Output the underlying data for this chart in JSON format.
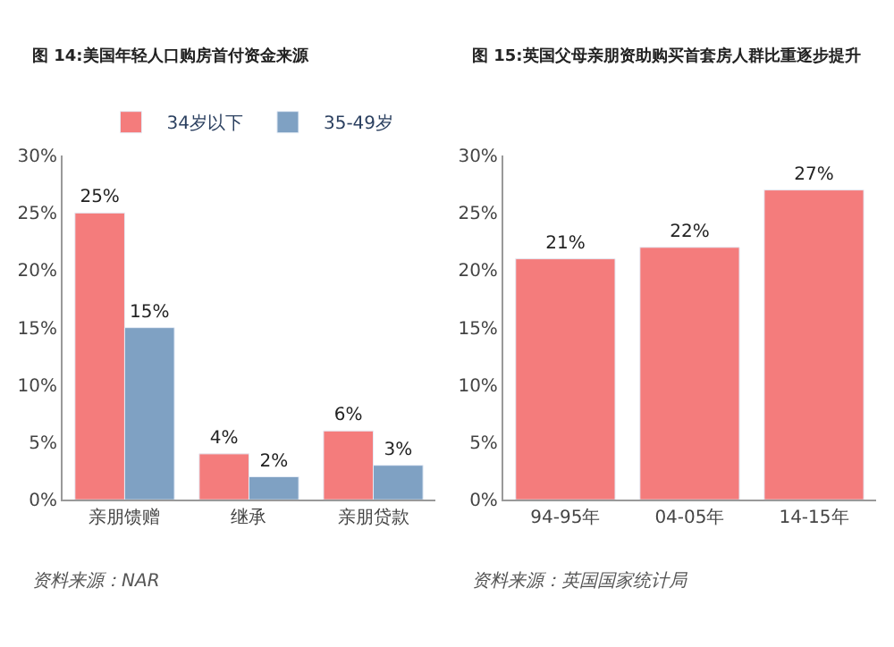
{
  "chart_data": [
    {
      "type": "bar",
      "title": "图 14:美国年轻人口购房首付资金来源",
      "categories": [
        "亲朋馈赠",
        "继承",
        "亲朋贷款"
      ],
      "series": [
        {
          "name": "34岁以下",
          "color": "#f47c7c",
          "values": [
            25,
            4,
            6
          ]
        },
        {
          "name": "35-49岁",
          "color": "#7fa1c3",
          "values": [
            15,
            2,
            3
          ]
        }
      ],
      "ylim": [
        0,
        30
      ],
      "yticks": [
        {
          "value": 0,
          "label": "0%"
        },
        {
          "value": 5,
          "label": "5%"
        },
        {
          "value": 10,
          "label": "10%"
        },
        {
          "value": 15,
          "label": "15%"
        },
        {
          "value": 20,
          "label": "20%"
        },
        {
          "value": 25,
          "label": "25%"
        },
        {
          "value": 30,
          "label": "30%"
        }
      ],
      "value_labels": [
        [
          "25%",
          "4%",
          "6%"
        ],
        [
          "15%",
          "2%",
          "3%"
        ]
      ],
      "legend": "top",
      "annotations": [
        "资料来源：NAR"
      ]
    },
    {
      "type": "bar",
      "title": "图 15:英国父母亲朋资助购买首套房人群比重逐步提升",
      "categories": [
        "94-95年",
        "04-05年",
        "14-15年"
      ],
      "series": [
        {
          "color": "#f47c7c",
          "values": [
            21,
            22,
            27
          ]
        }
      ],
      "ylim": [
        0,
        30
      ],
      "yticks": [
        {
          "value": 0,
          "label": "0%"
        },
        {
          "value": 5,
          "label": "5%"
        },
        {
          "value": 10,
          "label": "10%"
        },
        {
          "value": 15,
          "label": "15%"
        },
        {
          "value": 20,
          "label": "20%"
        },
        {
          "value": 25,
          "label": "25%"
        },
        {
          "value": 30,
          "label": "30%"
        }
      ],
      "value_labels": [
        [
          "21%",
          "22%",
          "27%"
        ]
      ],
      "legend": false,
      "annotations": [
        "资料来源：英国国家统计局"
      ]
    }
  ]
}
